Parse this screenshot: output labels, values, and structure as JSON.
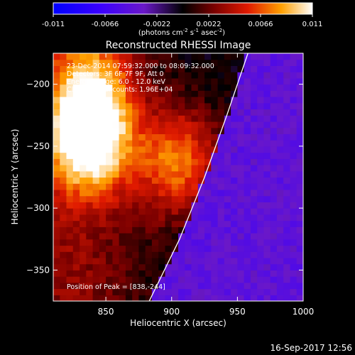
{
  "colorbar": {
    "ticks": [
      "-0.011",
      "-0.0066",
      "-0.0022",
      "0.0022",
      "0.0066",
      "0.011"
    ],
    "units_main": "(photons cm",
    "units_exp1": "-2",
    "units_mid": " s",
    "units_exp2": "-1",
    "units_end": " asec",
    "units_exp3": "-2",
    "units_close": ")"
  },
  "chart_data": {
    "type": "heatmap",
    "title": "Reconstructed RHESSI Image",
    "xlabel": "Heliocentric X (arcsec)",
    "ylabel": "Heliocentric Y (arcsec)",
    "xlim": [
      810,
      1000
    ],
    "ylim": [
      -375,
      -175
    ],
    "xticks": [
      850,
      900,
      950,
      1000
    ],
    "yticks": [
      -200,
      -250,
      -300,
      -350
    ],
    "colorbar_range": [
      -0.011,
      0.011
    ],
    "annotations": [
      "23-Dec-2014 07:59:32.000 to 08:09:32.000",
      "Detectors: 3F 6F 7F 9F, Att 0",
      "Energy Range: 6.0 - 12.0 keV",
      "Clean    Total counts: 1.96E+04"
    ],
    "peak_label": "Position of Peak = [838,-244]",
    "peak": [
      838,
      -244
    ],
    "sources": [
      {
        "x": 838,
        "y": -244,
        "peak": 0.011
      },
      {
        "x": 905,
        "y": -262,
        "peak": 0.0072
      },
      {
        "x": 840,
        "y": -200,
        "peak": 0.0055
      }
    ],
    "limb_curve": [
      [
        958,
        -175
      ],
      [
        942,
        -225
      ],
      [
        925,
        -275
      ],
      [
        906,
        -325
      ],
      [
        883,
        -375
      ]
    ],
    "colors": {
      "background": "#000000",
      "text": "#ffffff",
      "limb": "#ffffff"
    }
  },
  "footer": {
    "timestamp": "16-Sep-2017 12:56"
  }
}
